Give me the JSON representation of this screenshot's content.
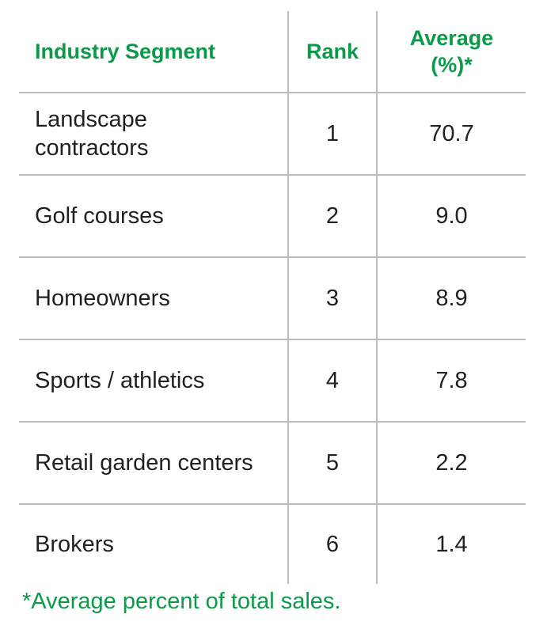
{
  "table": {
    "headers": {
      "segment": "Industry Segment",
      "rank": "Rank",
      "average_line1": "Average",
      "average_line2": "(%)*"
    },
    "rows": [
      {
        "segment_line1": "Landscape",
        "segment_line2": "contractors",
        "rank": "1",
        "average": "70.7"
      },
      {
        "segment_line1": "Golf courses",
        "segment_line2": "",
        "rank": "2",
        "average": "9.0"
      },
      {
        "segment_line1": "Homeowners",
        "segment_line2": "",
        "rank": "3",
        "average": "8.9"
      },
      {
        "segment_line1": "Sports / athletics",
        "segment_line2": "",
        "rank": "4",
        "average": "7.8"
      },
      {
        "segment_line1": "Retail garden centers",
        "segment_line2": "",
        "rank": "5",
        "average": "2.2"
      },
      {
        "segment_line1": "Brokers",
        "segment_line2": "",
        "rank": "6",
        "average": "1.4"
      }
    ]
  },
  "footnote": "*Average percent of total sales.",
  "colors": {
    "header_green": "#0a9a49",
    "text": "#231f20",
    "rule": "#b9bcc0"
  }
}
